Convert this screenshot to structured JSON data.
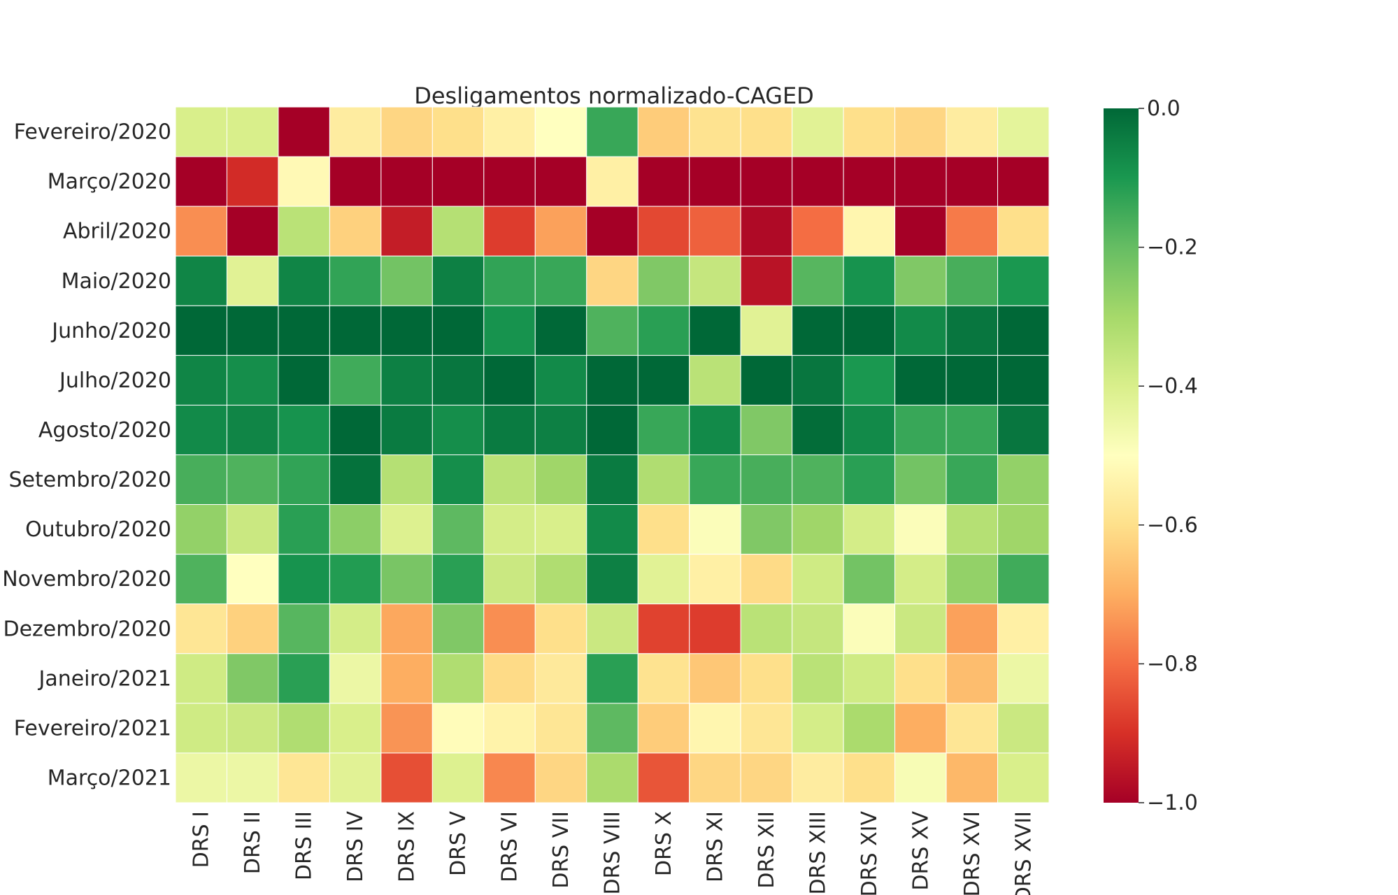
{
  "chart_data": {
    "type": "heatmap",
    "title": "Desligamentos normalizado-CAGED",
    "rows": [
      "Fevereiro/2020",
      "Março/2020",
      "Abril/2020",
      "Maio/2020",
      "Junho/2020",
      "Julho/2020",
      "Agosto/2020",
      "Setembro/2020",
      "Outubro/2020",
      "Novembro/2020",
      "Dezembro/2020",
      "Janeiro/2021",
      "Fevereiro/2021",
      "Março/2021"
    ],
    "columns": [
      "DRS I",
      "DRS II",
      "DRS III",
      "DRS IV",
      "DRS IX",
      "DRS V",
      "DRS VI",
      "DRS VII",
      "DRS VIII",
      "DRS X",
      "DRS XI",
      "DRS XII",
      "DRS XIII",
      "DRS XIV",
      "DRS XV",
      "DRS XVI",
      "DRS XVII"
    ],
    "values": [
      [
        -0.4,
        -0.4,
        -1.0,
        -0.56,
        -0.62,
        -0.6,
        -0.55,
        -0.5,
        -0.14,
        -0.64,
        -0.59,
        -0.6,
        -0.42,
        -0.6,
        -0.62,
        -0.56,
        -0.43
      ],
      [
        -1.0,
        -0.91,
        -0.52,
        -1.0,
        -1.0,
        -1.0,
        -1.0,
        -1.0,
        -0.55,
        -1.0,
        -1.0,
        -1.0,
        -1.0,
        -1.0,
        -1.0,
        -1.0,
        -1.0
      ],
      [
        -0.75,
        -1.0,
        -0.34,
        -0.63,
        -0.94,
        -0.33,
        -0.88,
        -0.72,
        -1.0,
        -0.86,
        -0.82,
        -0.98,
        -0.8,
        -0.53,
        -1.0,
        -0.78,
        -0.6
      ],
      [
        -0.06,
        -0.42,
        -0.06,
        -0.13,
        -0.22,
        -0.05,
        -0.13,
        -0.14,
        -0.62,
        -0.24,
        -0.36,
        -0.96,
        -0.18,
        -0.09,
        -0.24,
        -0.16,
        -0.1
      ],
      [
        0.0,
        0.0,
        0.0,
        0.0,
        0.0,
        0.0,
        -0.09,
        0.0,
        -0.17,
        -0.12,
        0.0,
        -0.42,
        0.0,
        0.0,
        -0.07,
        -0.03,
        0.0
      ],
      [
        -0.06,
        -0.08,
        0.0,
        -0.15,
        -0.05,
        -0.03,
        0.0,
        -0.07,
        0.0,
        0.0,
        -0.34,
        0.0,
        -0.03,
        -0.1,
        0.0,
        0.0,
        0.0
      ],
      [
        -0.07,
        -0.06,
        -0.09,
        0.0,
        -0.04,
        -0.08,
        -0.04,
        -0.05,
        0.0,
        -0.14,
        -0.07,
        -0.24,
        -0.01,
        -0.07,
        -0.14,
        -0.14,
        -0.03
      ],
      [
        -0.16,
        -0.17,
        -0.13,
        -0.02,
        -0.33,
        -0.08,
        -0.34,
        -0.29,
        -0.04,
        -0.32,
        -0.14,
        -0.16,
        -0.17,
        -0.12,
        -0.22,
        -0.14,
        -0.27
      ],
      [
        -0.27,
        -0.37,
        -0.12,
        -0.26,
        -0.41,
        -0.19,
        -0.39,
        -0.4,
        -0.07,
        -0.6,
        -0.49,
        -0.24,
        -0.29,
        -0.39,
        -0.49,
        -0.33,
        -0.29
      ],
      [
        -0.17,
        -0.5,
        -0.09,
        -0.11,
        -0.23,
        -0.12,
        -0.37,
        -0.32,
        -0.05,
        -0.42,
        -0.55,
        -0.61,
        -0.38,
        -0.22,
        -0.39,
        -0.27,
        -0.15
      ],
      [
        -0.58,
        -0.63,
        -0.18,
        -0.39,
        -0.71,
        -0.24,
        -0.75,
        -0.6,
        -0.37,
        -0.87,
        -0.88,
        -0.34,
        -0.36,
        -0.49,
        -0.37,
        -0.72,
        -0.55
      ],
      [
        -0.38,
        -0.24,
        -0.12,
        -0.45,
        -0.7,
        -0.32,
        -0.61,
        -0.57,
        -0.12,
        -0.59,
        -0.65,
        -0.6,
        -0.34,
        -0.38,
        -0.6,
        -0.67,
        -0.45
      ],
      [
        -0.38,
        -0.37,
        -0.32,
        -0.4,
        -0.74,
        -0.51,
        -0.54,
        -0.58,
        -0.19,
        -0.64,
        -0.53,
        -0.58,
        -0.39,
        -0.31,
        -0.7,
        -0.58,
        -0.37
      ],
      [
        -0.45,
        -0.45,
        -0.58,
        -0.42,
        -0.85,
        -0.41,
        -0.76,
        -0.62,
        -0.31,
        -0.84,
        -0.62,
        -0.62,
        -0.56,
        -0.6,
        -0.48,
        -0.68,
        -0.4
      ]
    ],
    "colorbar": {
      "min": -1.0,
      "max": 0.0,
      "ticks": [
        "0.0",
        "−0.2",
        "−0.4",
        "−0.6",
        "−0.8",
        "−1.0"
      ],
      "tick_values": [
        0.0,
        -0.2,
        -0.4,
        -0.6,
        -0.8,
        -1.0
      ]
    },
    "colormap": "RdYlGn",
    "colormap_stops": [
      "#a50026",
      "#d73027",
      "#f46d43",
      "#fdae61",
      "#fee08b",
      "#ffffbf",
      "#d9ef8b",
      "#a6d96a",
      "#66bd63",
      "#1a9850",
      "#006837"
    ]
  }
}
